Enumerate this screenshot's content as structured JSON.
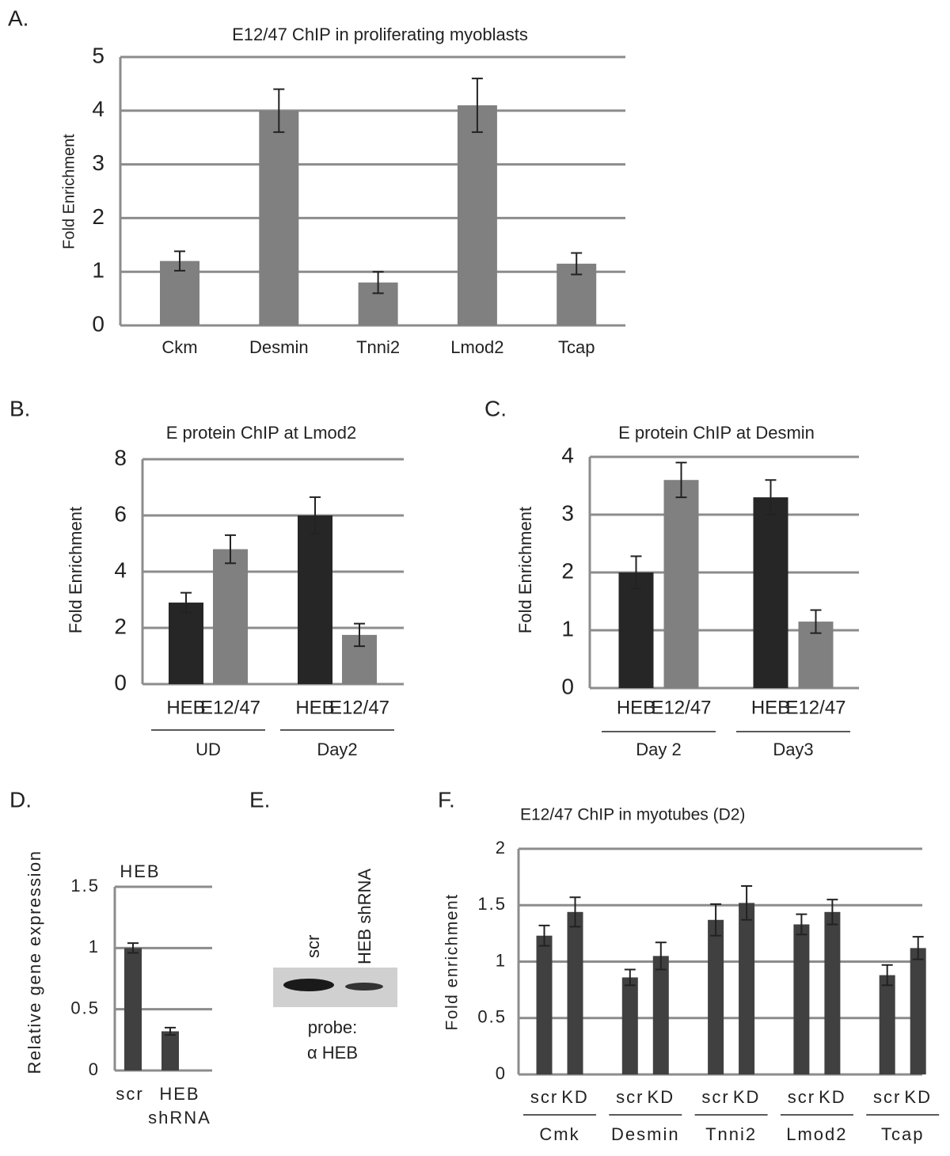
{
  "chart_data": [
    {
      "type": "bar",
      "panel": "A.",
      "title": "E12/47 ChIP in proliferating myoblasts",
      "y_label": "Fold Enrichment",
      "categories": [
        "Ckm",
        "Desmin",
        "Tnni2",
        "Lmod2",
        "Tcap"
      ],
      "values": [
        1.2,
        4.0,
        0.8,
        4.1,
        1.15
      ],
      "errors": [
        0.18,
        0.4,
        0.2,
        0.5,
        0.2
      ],
      "color": "#808080",
      "ylim": [
        0,
        5
      ],
      "yticks": [
        0,
        1,
        2,
        3,
        4,
        5
      ],
      "grid": true
    },
    {
      "type": "bar",
      "panel": "B.",
      "title": "E protein ChIP at Lmod2",
      "y_label": "Fold Enrichment",
      "categories": [
        "UD",
        "Day2"
      ],
      "series": [
        {
          "name": "HEB",
          "color": "#262626",
          "values": [
            2.9,
            6.0
          ],
          "errors": [
            0.35,
            0.65
          ]
        },
        {
          "name": "E12/47",
          "color": "#808080",
          "values": [
            4.8,
            1.75
          ],
          "errors": [
            0.5,
            0.4
          ]
        }
      ],
      "ylim": [
        0,
        8
      ],
      "yticks": [
        0,
        2,
        4,
        6,
        8
      ],
      "grid": true
    },
    {
      "type": "bar",
      "panel": "C.",
      "title": "E protein ChIP at Desmin",
      "y_label": "Fold Enrichment",
      "categories": [
        "Day 2",
        "Day3"
      ],
      "series": [
        {
          "name": "HEB",
          "color": "#262626",
          "values": [
            2.0,
            3.3
          ],
          "errors": [
            0.28,
            0.3
          ]
        },
        {
          "name": "E12/47",
          "color": "#808080",
          "values": [
            3.6,
            1.15
          ],
          "errors": [
            0.3,
            0.2
          ]
        }
      ],
      "ylim": [
        0,
        4
      ],
      "yticks": [
        0,
        1,
        2,
        3,
        4
      ],
      "grid": true
    },
    {
      "type": "bar",
      "panel": "D.",
      "annotation": "HEB",
      "y_label": "Relative gene expression",
      "categories": [
        "scr",
        "HEB shRNA"
      ],
      "values": [
        1.0,
        0.32
      ],
      "errors": [
        0.04,
        0.03
      ],
      "color": "#404040",
      "ylim": [
        0,
        1.5
      ],
      "yticks": [
        0,
        0.5,
        1,
        1.5
      ],
      "grid": true
    },
    {
      "type": "bar",
      "panel": "F.",
      "title": "E12/47 ChIP in myotubes (D2)",
      "y_label": "Fold enrichment",
      "categories": [
        "Cmk",
        "Desmin",
        "Tnni2",
        "Lmod2",
        "Tcap"
      ],
      "series": [
        {
          "name": "scr",
          "color": "#404040",
          "values": [
            1.23,
            0.86,
            1.37,
            1.33,
            0.88
          ],
          "errors": [
            0.09,
            0.07,
            0.14,
            0.09,
            0.09
          ]
        },
        {
          "name": "KD",
          "color": "#404040",
          "values": [
            1.44,
            1.05,
            1.52,
            1.44,
            1.12
          ],
          "errors": [
            0.13,
            0.12,
            0.15,
            0.11,
            0.1
          ]
        }
      ],
      "ylim": [
        0,
        2
      ],
      "yticks": [
        0,
        0.5,
        1,
        1.5,
        2
      ],
      "grid": true
    }
  ],
  "blot": {
    "panel": "E.",
    "lanes": [
      "scr",
      "HEB shRNA"
    ],
    "probe": [
      "probe:",
      "α HEB"
    ]
  }
}
